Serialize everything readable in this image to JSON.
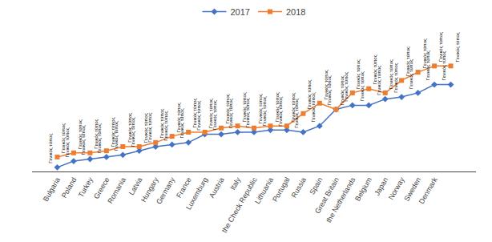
{
  "chart_data": {
    "type": "line",
    "categories": [
      "Bulgaria",
      "Poland",
      "Turkey",
      "Greece",
      "Romania",
      "Latvia",
      "Hungary",
      "Germany",
      "France",
      "Luxemburg",
      "Austria",
      "Italy",
      "the Check Republic",
      "Lithuania",
      "Portugal",
      "Russia",
      "Spain",
      "Great Britain",
      "the Netherlands",
      "Belgium",
      "Japan",
      "Norway",
      "Sweden",
      "Denmark",
      " "
    ],
    "series": [
      {
        "name": "2017",
        "color": "#4472C4",
        "marker": "diamond",
        "values": [
          2,
          5,
          6,
          7,
          8,
          10,
          12,
          13,
          14,
          18,
          18,
          19,
          19,
          20,
          20,
          19,
          22,
          30,
          32,
          32,
          35,
          36,
          38,
          42,
          42
        ]
      },
      {
        "name": "2018",
        "color": "#ED7D31",
        "marker": "square",
        "values": [
          7,
          9,
          9,
          10,
          12,
          12,
          14,
          17,
          19,
          19,
          21,
          22,
          21,
          22,
          22,
          28,
          33,
          30,
          38,
          40,
          38,
          44,
          48,
          51,
          51
        ]
      }
    ],
    "annotation": "Γενικός τύπος",
    "ylim": [
      0,
      55
    ],
    "tick_labels": "x",
    "grid": false,
    "legend": "top"
  }
}
